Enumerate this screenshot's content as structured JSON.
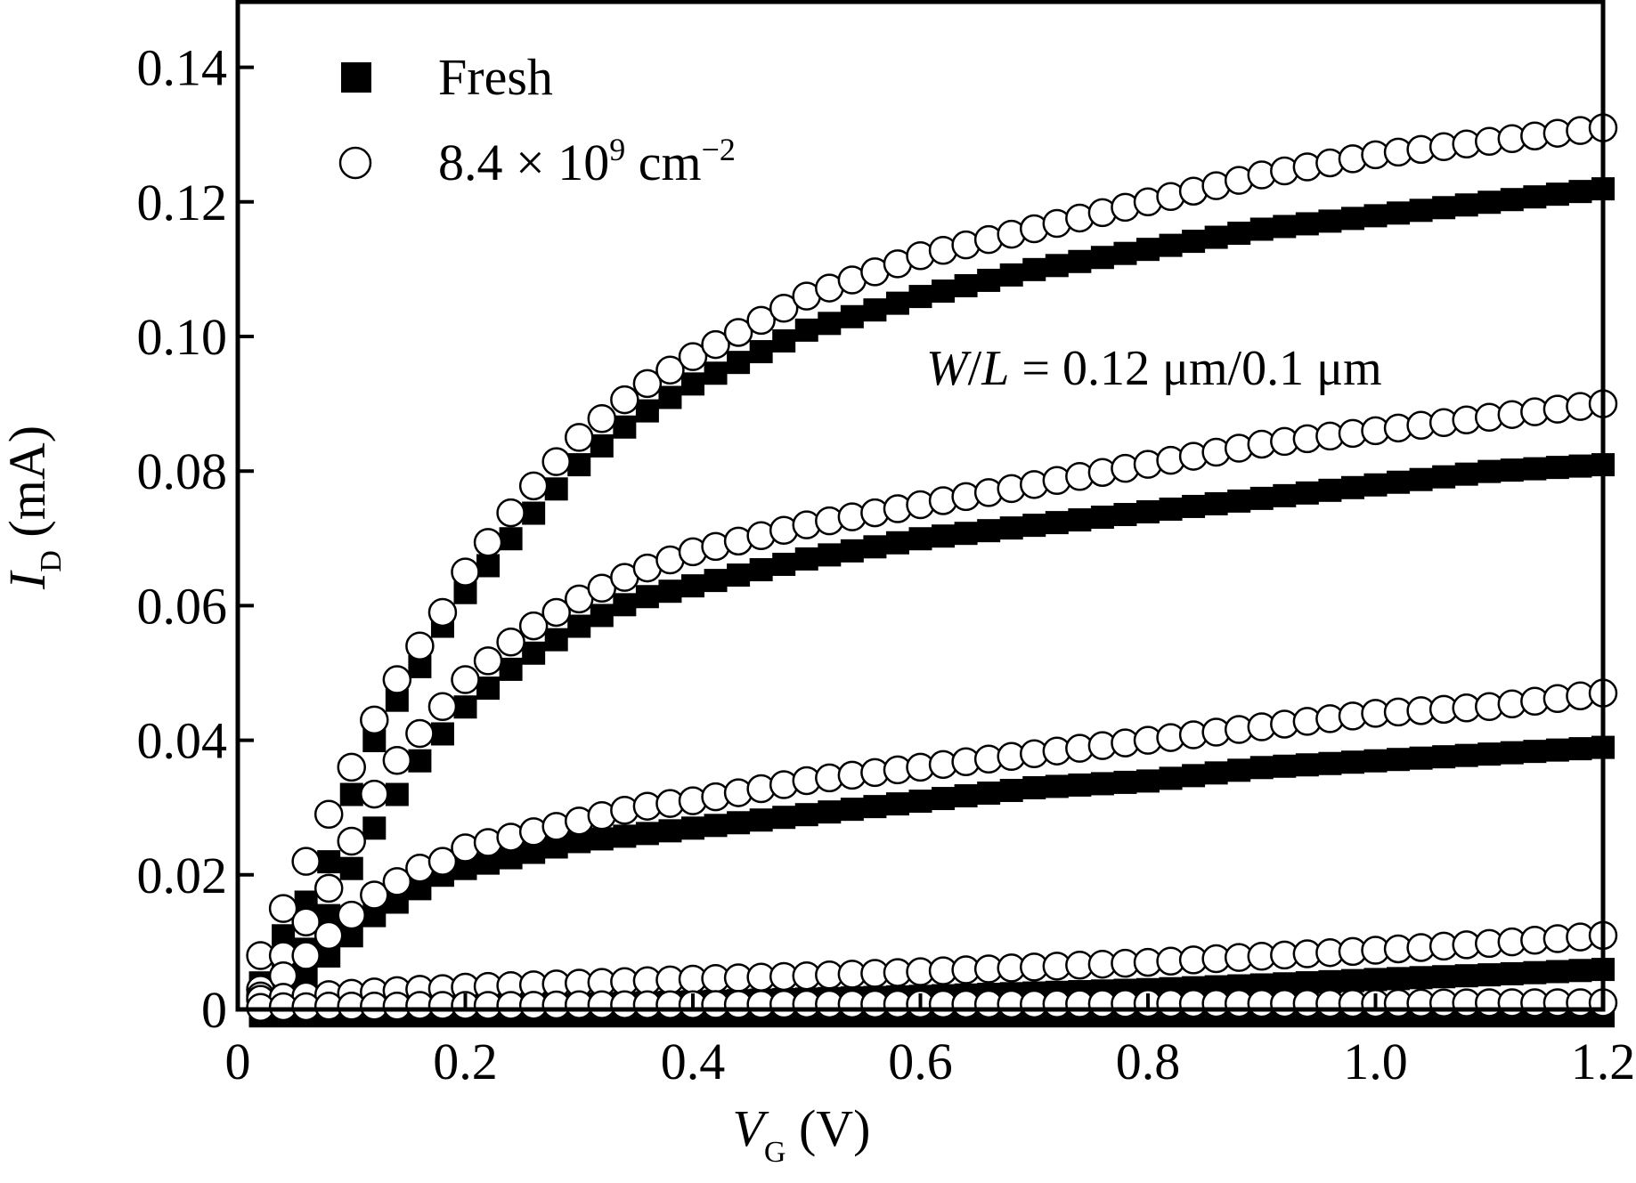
{
  "chart_data": {
    "type": "scatter",
    "xlabel_main": "V",
    "xlabel_sub": "G",
    "xlabel_unit": " (V)",
    "ylabel_main": "I",
    "ylabel_sub": "D",
    "ylabel_unit": " (mA)",
    "xlim": [
      0,
      1.2
    ],
    "ylim": [
      0,
      0.15
    ],
    "xticks": [
      0,
      0.2,
      0.4,
      0.6,
      0.8,
      1.0,
      1.2
    ],
    "xtick_labels": [
      "0",
      "0.2",
      "0.4",
      "0.6",
      "0.8",
      "1.0",
      "1.2"
    ],
    "yticks": [
      0,
      0.02,
      0.04,
      0.06,
      0.08,
      0.1,
      0.12,
      0.14
    ],
    "ytick_labels": [
      "0",
      "0.02",
      "0.04",
      "0.06",
      "0.08",
      "0.10",
      "0.12",
      "0.14"
    ],
    "annotation": {
      "w": "W",
      "slash": "/",
      "l": "L",
      "rest": " = 0.12 μm/0.1 μm"
    },
    "legend": {
      "placement": "top-left",
      "entries": [
        {
          "label": "Fresh",
          "marker": "filled-square"
        },
        {
          "label_base": "8.4 × 10",
          "label_sup": "9",
          "label_unit": " cm",
          "label_unit_sup": "−2",
          "marker": "open-circle"
        }
      ]
    },
    "x_step": 0.02,
    "x_start": 0.02,
    "x_end": 1.2,
    "series": [
      {
        "name": "Fresh",
        "curve": 1,
        "marker": "filled-square",
        "x": [
          0.02,
          0.04,
          0.06,
          0.08,
          0.1,
          0.12,
          0.14,
          0.16,
          0.18,
          0.2,
          0.25,
          0.3,
          0.35,
          0.4,
          0.5,
          0.6,
          0.7,
          0.8,
          0.9,
          1.0,
          1.1,
          1.2
        ],
        "y": [
          0.005,
          0.012,
          0.017,
          0.023,
          0.033,
          0.041,
          0.047,
          0.052,
          0.058,
          0.063,
          0.073,
          0.082,
          0.089,
          0.094,
          0.102,
          0.107,
          0.111,
          0.114,
          0.117,
          0.119,
          0.121,
          0.123
        ]
      },
      {
        "name": "8.4 × 10^9 cm^-2",
        "curve": 1,
        "marker": "open-circle",
        "x": [
          0.02,
          0.04,
          0.06,
          0.08,
          0.1,
          0.12,
          0.14,
          0.16,
          0.18,
          0.2,
          0.25,
          0.3,
          0.35,
          0.4,
          0.5,
          0.6,
          0.7,
          0.8,
          0.9,
          1.0,
          1.1,
          1.2
        ],
        "y": [
          0.008,
          0.015,
          0.022,
          0.029,
          0.036,
          0.043,
          0.049,
          0.054,
          0.059,
          0.065,
          0.076,
          0.085,
          0.092,
          0.097,
          0.106,
          0.112,
          0.116,
          0.12,
          0.124,
          0.127,
          0.129,
          0.131
        ]
      },
      {
        "name": "Fresh",
        "curve": 2,
        "marker": "filled-square",
        "x": [
          0.02,
          0.04,
          0.06,
          0.08,
          0.1,
          0.12,
          0.14,
          0.16,
          0.18,
          0.2,
          0.25,
          0.3,
          0.35,
          0.4,
          0.5,
          0.6,
          0.7,
          0.8,
          0.9,
          1.0,
          1.1,
          1.2
        ],
        "y": [
          0.002,
          0.006,
          0.01,
          0.015,
          0.022,
          0.028,
          0.033,
          0.038,
          0.042,
          0.046,
          0.053,
          0.058,
          0.062,
          0.064,
          0.068,
          0.071,
          0.073,
          0.075,
          0.077,
          0.079,
          0.081,
          0.082
        ]
      },
      {
        "name": "8.4 × 10^9 cm^-2",
        "curve": 2,
        "marker": "open-circle",
        "x": [
          0.02,
          0.04,
          0.06,
          0.08,
          0.1,
          0.12,
          0.14,
          0.16,
          0.18,
          0.2,
          0.25,
          0.3,
          0.35,
          0.4,
          0.5,
          0.6,
          0.7,
          0.8,
          0.9,
          1.0,
          1.1,
          1.2
        ],
        "y": [
          0.003,
          0.008,
          0.013,
          0.018,
          0.025,
          0.032,
          0.037,
          0.041,
          0.045,
          0.049,
          0.056,
          0.061,
          0.065,
          0.068,
          0.072,
          0.075,
          0.078,
          0.081,
          0.084,
          0.086,
          0.088,
          0.09
        ]
      },
      {
        "name": "Fresh",
        "curve": 3,
        "marker": "filled-square",
        "x": [
          0.02,
          0.04,
          0.06,
          0.08,
          0.1,
          0.12,
          0.14,
          0.16,
          0.18,
          0.2,
          0.25,
          0.3,
          0.35,
          0.4,
          0.5,
          0.6,
          0.7,
          0.8,
          0.9,
          1.0,
          1.1,
          1.2
        ],
        "y": [
          0.001,
          0.003,
          0.006,
          0.009,
          0.012,
          0.015,
          0.017,
          0.019,
          0.021,
          0.022,
          0.024,
          0.026,
          0.027,
          0.028,
          0.03,
          0.032,
          0.034,
          0.035,
          0.037,
          0.038,
          0.039,
          0.04
        ]
      },
      {
        "name": "8.4 × 10^9 cm^-2",
        "curve": 3,
        "marker": "open-circle",
        "x": [
          0.02,
          0.04,
          0.06,
          0.08,
          0.1,
          0.12,
          0.14,
          0.16,
          0.18,
          0.2,
          0.25,
          0.3,
          0.35,
          0.4,
          0.5,
          0.6,
          0.7,
          0.8,
          0.9,
          1.0,
          1.1,
          1.2
        ],
        "y": [
          0.002,
          0.005,
          0.008,
          0.011,
          0.014,
          0.017,
          0.019,
          0.021,
          0.022,
          0.024,
          0.026,
          0.028,
          0.03,
          0.031,
          0.034,
          0.036,
          0.038,
          0.04,
          0.042,
          0.044,
          0.045,
          0.047
        ]
      },
      {
        "name": "Fresh",
        "curve": 4,
        "marker": "filled-square",
        "x": [
          0.02,
          0.04,
          0.06,
          0.08,
          0.1,
          0.12,
          0.14,
          0.16,
          0.18,
          0.2,
          0.25,
          0.3,
          0.35,
          0.4,
          0.5,
          0.6,
          0.7,
          0.8,
          0.9,
          1.0,
          1.1,
          1.2
        ],
        "y": [
          0.0003,
          0.0005,
          0.0007,
          0.0008,
          0.0009,
          0.001,
          0.0011,
          0.0012,
          0.0013,
          0.0014,
          0.0016,
          0.0018,
          0.002,
          0.0022,
          0.0026,
          0.003,
          0.0035,
          0.004,
          0.0047,
          0.0055,
          0.0062,
          0.007
        ]
      },
      {
        "name": "8.4 × 10^9 cm^-2",
        "curve": 4,
        "marker": "open-circle",
        "x": [
          0.02,
          0.04,
          0.06,
          0.08,
          0.1,
          0.12,
          0.14,
          0.16,
          0.18,
          0.2,
          0.25,
          0.3,
          0.35,
          0.4,
          0.5,
          0.6,
          0.7,
          0.8,
          0.9,
          1.0,
          1.1,
          1.2
        ],
        "y": [
          0.0015,
          0.0018,
          0.002,
          0.0022,
          0.0024,
          0.0026,
          0.0028,
          0.003,
          0.0031,
          0.0033,
          0.0036,
          0.0039,
          0.0042,
          0.0045,
          0.005,
          0.0056,
          0.0063,
          0.007,
          0.0079,
          0.0088,
          0.0098,
          0.011
        ]
      },
      {
        "name": "Fresh",
        "curve": 5,
        "marker": "filled-square",
        "x": [
          0.02,
          0.04,
          0.06,
          0.08,
          0.1,
          0.12,
          0.14,
          0.16,
          0.18,
          0.2,
          0.25,
          0.3,
          0.35,
          0.4,
          0.5,
          0.6,
          0.7,
          0.8,
          0.9,
          1.0,
          1.1,
          1.2
        ],
        "y": [
          0.0001,
          0.0001,
          0.0001,
          0.0001,
          0.0001,
          0.0001,
          0.0001,
          0.0001,
          0.0001,
          0.0001,
          0.0001,
          0.0001,
          0.0001,
          0.0001,
          0.0001,
          0.0001,
          0.0001,
          0.0001,
          0.0001,
          0.0001,
          0.0001,
          0.0001
        ]
      },
      {
        "name": "8.4 × 10^9 cm^-2",
        "curve": 5,
        "marker": "open-circle",
        "x": [
          0.02,
          0.04,
          0.06,
          0.08,
          0.1,
          0.12,
          0.14,
          0.16,
          0.18,
          0.2,
          0.25,
          0.3,
          0.35,
          0.4,
          0.5,
          0.6,
          0.7,
          0.8,
          0.9,
          1.0,
          1.1,
          1.2
        ],
        "y": [
          0.0003,
          0.0004,
          0.0004,
          0.0005,
          0.0005,
          0.0005,
          0.0005,
          0.0006,
          0.0006,
          0.0006,
          0.0006,
          0.0007,
          0.0007,
          0.0007,
          0.0008,
          0.0008,
          0.0008,
          0.0009,
          0.0009,
          0.0009,
          0.001,
          0.001
        ]
      }
    ]
  }
}
